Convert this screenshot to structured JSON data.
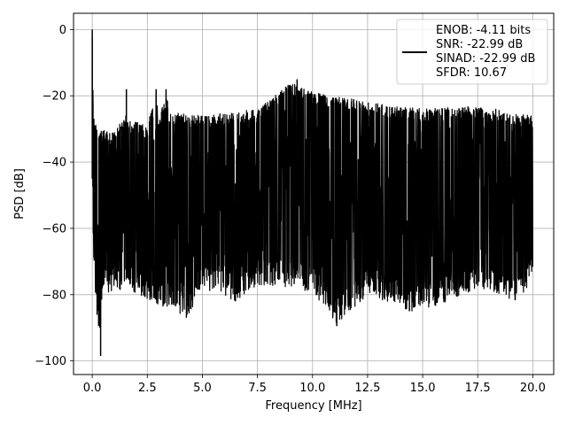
{
  "chart_data": {
    "type": "line",
    "title": "",
    "xlabel": "Frequency [MHz]",
    "ylabel": "PSD [dB]",
    "xlim": [
      -0.85,
      20.95
    ],
    "ylim": [
      -104.1,
      4.9
    ],
    "xticks": [
      0.0,
      2.5,
      5.0,
      7.5,
      10.0,
      12.5,
      15.0,
      17.5,
      20.0
    ],
    "xtick_labels": [
      "0.0",
      "2.5",
      "5.0",
      "7.5",
      "10.0",
      "12.5",
      "15.0",
      "17.5",
      "20.0"
    ],
    "yticks": [
      0,
      -20,
      -40,
      -60,
      -80,
      -100
    ],
    "ytick_labels": [
      "0",
      "−20",
      "−40",
      "−60",
      "−80",
      "−100"
    ],
    "grid": true,
    "legend_position": "top-right",
    "series": [
      {
        "name": "ENOB: -4.11 bits\nSNR: -22.99 dB\nSINAD: -22.99 dB\nSFDR: 10.67",
        "color": "#000000",
        "legend_lines": [
          "ENOB: -4.11 bits",
          "SNR: -22.99 dB",
          "SINAD: -22.99 dB",
          "SFDR: 10.67"
        ],
        "x_range": [
          0.0,
          20.0
        ],
        "upper_envelope": [
          [
            0.0,
            0
          ],
          [
            0.05,
            -26
          ],
          [
            0.3,
            -30
          ],
          [
            1.0,
            -31
          ],
          [
            1.5,
            -26
          ],
          [
            1.55,
            -18
          ],
          [
            1.6,
            -27
          ],
          [
            2.5,
            -29
          ],
          [
            2.9,
            -19
          ],
          [
            3.0,
            -27
          ],
          [
            3.4,
            -19
          ],
          [
            3.5,
            -25
          ],
          [
            5.0,
            -26
          ],
          [
            7.5,
            -24
          ],
          [
            8.8,
            -17
          ],
          [
            9.3,
            -16
          ],
          [
            10.0,
            -19
          ],
          [
            12.0,
            -21
          ],
          [
            12.5,
            -22
          ],
          [
            15.0,
            -24
          ],
          [
            17.5,
            -23
          ],
          [
            20.0,
            -26
          ]
        ],
        "lower_envelope": [
          [
            0.0,
            -66
          ],
          [
            0.1,
            -75
          ],
          [
            0.35,
            -99
          ],
          [
            0.5,
            -80
          ],
          [
            1.5,
            -78
          ],
          [
            2.7,
            -82
          ],
          [
            4.3,
            -87
          ],
          [
            5.0,
            -78
          ],
          [
            6.5,
            -82
          ],
          [
            7.5,
            -77
          ],
          [
            10.0,
            -79
          ],
          [
            11.1,
            -89
          ],
          [
            12.5,
            -80
          ],
          [
            14.5,
            -85
          ],
          [
            15.8,
            -83
          ],
          [
            17.5,
            -78
          ],
          [
            19.3,
            -82
          ],
          [
            20.0,
            -76
          ]
        ],
        "spikes": [
          [
            0.0,
            0
          ],
          [
            1.55,
            -18
          ],
          [
            2.9,
            -18
          ],
          [
            3.35,
            -18
          ],
          [
            9.3,
            -15
          ],
          [
            11.1,
            -89.5
          ],
          [
            0.38,
            -98.5
          ],
          [
            14.4,
            -85
          ],
          [
            4.3,
            -86
          ],
          [
            6.5,
            -82
          ]
        ]
      }
    ]
  }
}
